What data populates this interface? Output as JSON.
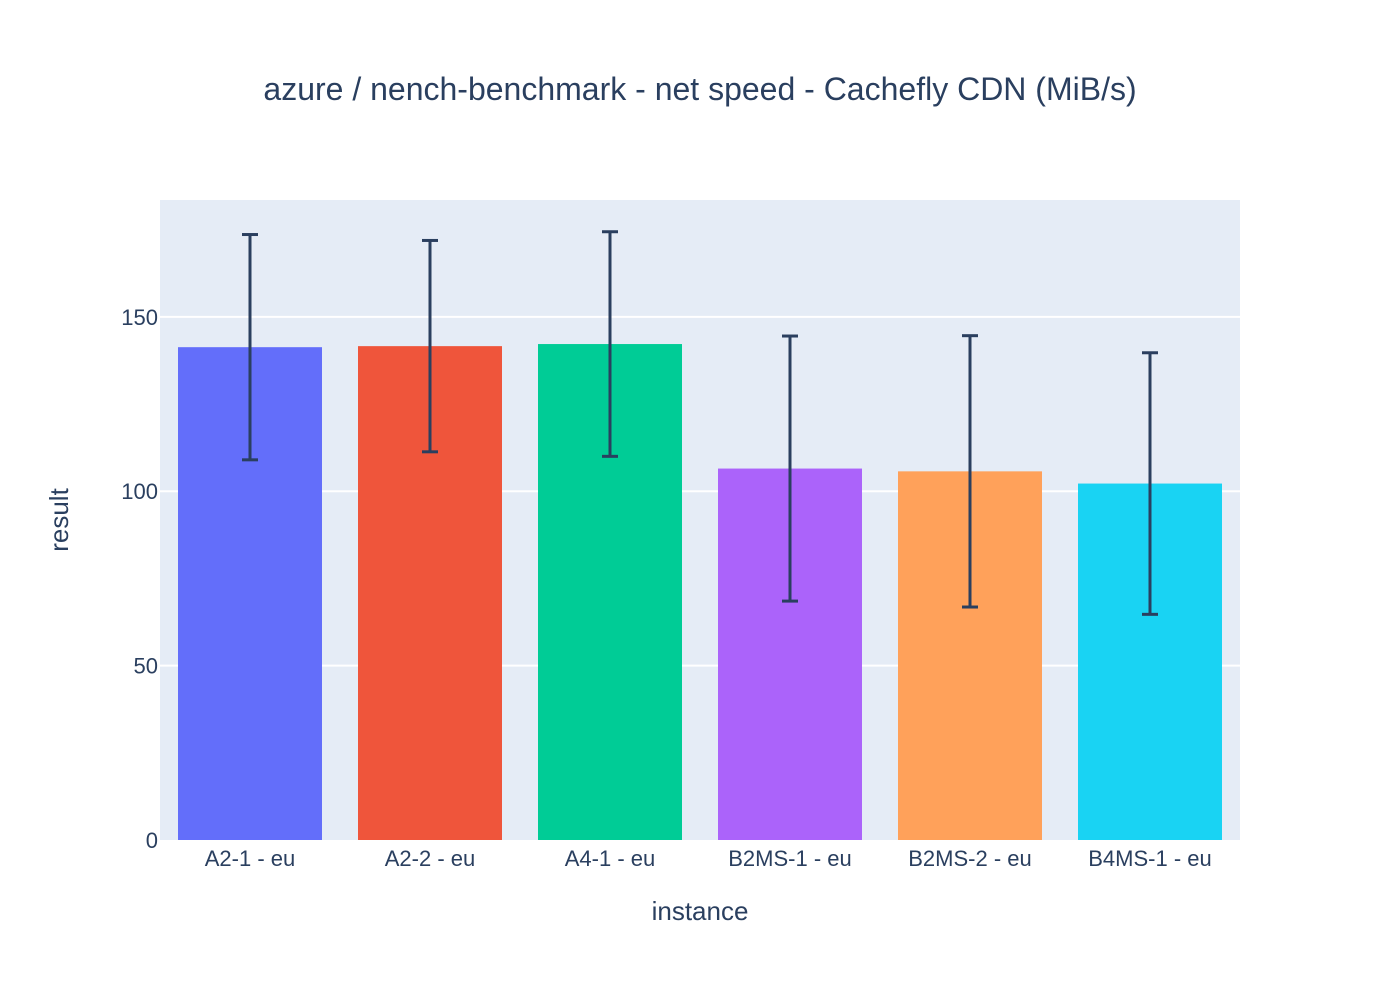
{
  "chart_data": {
    "type": "bar",
    "title": "azure / nench-benchmark - net speed - Cachefly CDN (MiB/s)",
    "xlabel": "instance",
    "ylabel": "result",
    "categories": [
      "A2-1 - eu",
      "A2-2 - eu",
      "A4-1 - eu",
      "B2MS-1 - eu",
      "B2MS-2 - eu",
      "B4MS-1 - eu"
    ],
    "values": [
      141.3,
      141.6,
      142.2,
      106.5,
      105.7,
      102.2
    ],
    "error": [
      32.3,
      30.3,
      32.2,
      38.0,
      38.9,
      37.5
    ],
    "colors": [
      "#636efa",
      "#ef553b",
      "#00cc96",
      "#ab63fa",
      "#ffa15a",
      "#19d3f3"
    ],
    "error_color": "#2a3f5f",
    "ylim": [
      0,
      183.5
    ],
    "yticks": [
      0,
      50,
      100,
      150
    ],
    "grid": true,
    "plot_background": "#e5ecf6"
  }
}
